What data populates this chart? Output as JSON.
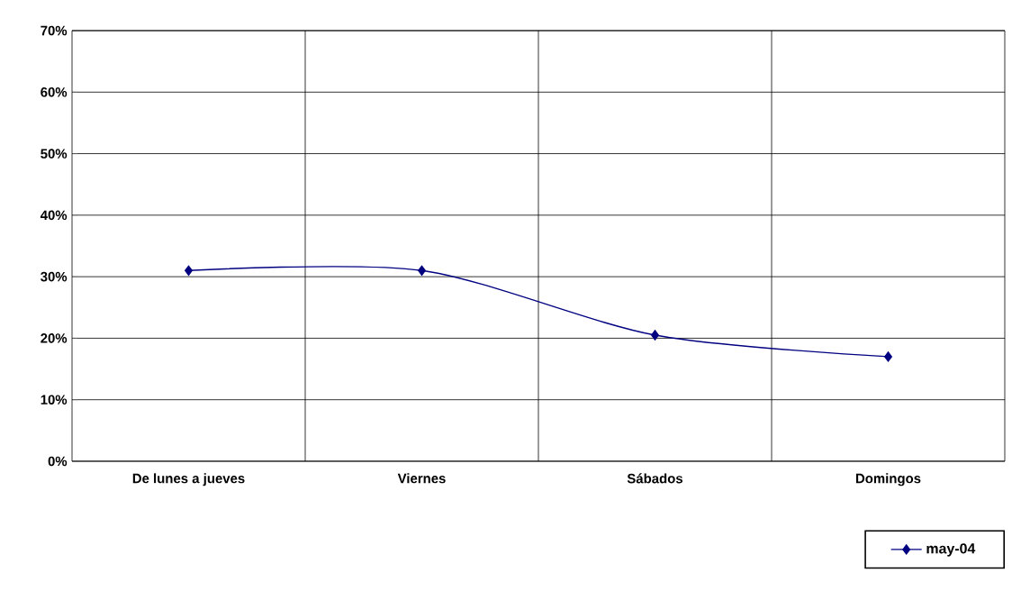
{
  "chart_data": {
    "type": "line",
    "categories": [
      "De lunes a jueves",
      "Viernes",
      "Sábados",
      "Domingos"
    ],
    "series": [
      {
        "name": "may-04",
        "color": "#000080",
        "values": [
          31,
          31,
          20.5,
          17
        ]
      }
    ],
    "ylim": [
      0,
      70
    ],
    "yticks": [
      {
        "value": 0,
        "label": "0%"
      },
      {
        "value": 10,
        "label": "10%"
      },
      {
        "value": 20,
        "label": "20%"
      },
      {
        "value": 30,
        "label": "30%"
      },
      {
        "value": 40,
        "label": "40%"
      },
      {
        "value": 50,
        "label": "50%"
      },
      {
        "value": 60,
        "label": "60%"
      },
      {
        "value": 70,
        "label": "70%"
      }
    ],
    "grid": true,
    "legend": "bottom right",
    "marker": "diamond",
    "line_style": "solid"
  }
}
